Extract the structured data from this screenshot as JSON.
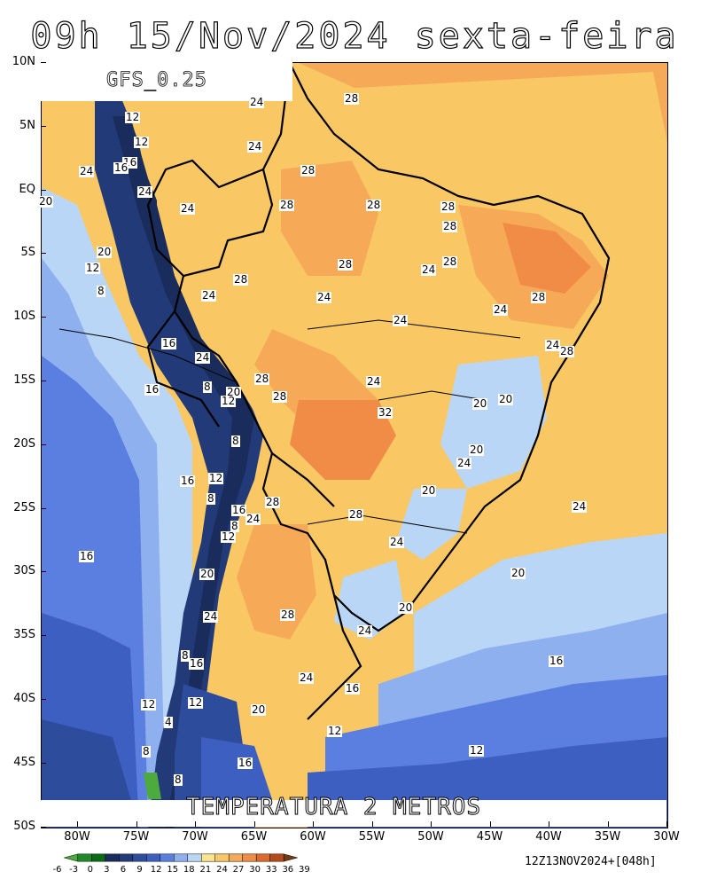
{
  "title": "09h 15/Nov/2024 sexta-feira",
  "model": "GFS_0.25",
  "variable": "TEMPERATURA 2 METROS",
  "run_info": "12Z13NOV2024+[048h]",
  "lat_ticks": [
    "10N",
    "5N",
    "EQ",
    "5S",
    "10S",
    "15S",
    "20S",
    "25S",
    "30S",
    "35S",
    "40S",
    "45S",
    "50S"
  ],
  "lon_ticks": [
    "80W",
    "75W",
    "70W",
    "65W",
    "60W",
    "55W",
    "50W",
    "45W",
    "40W",
    "35W",
    "30W"
  ],
  "colorbar": {
    "labels": [
      "-6",
      "-3",
      "0",
      "3",
      "6",
      "9",
      "12",
      "15",
      "18",
      "21",
      "24",
      "27",
      "30",
      "33",
      "36",
      "39"
    ],
    "colors": [
      "#4cab3c",
      "#1f8a2a",
      "#0b6a16",
      "#1a2c5c",
      "#223a78",
      "#2e4c9c",
      "#3d5fc2",
      "#5a7fe0",
      "#8fb0ef",
      "#bad6f6",
      "#fbe490",
      "#f9c865",
      "#f6aa58",
      "#f08c46",
      "#dd6a2a",
      "#b54a1a",
      "#7a3a10"
    ]
  },
  "contour_labels": [
    {
      "text": "28"
    },
    {
      "text": "24"
    },
    {
      "text": "12"
    },
    {
      "text": "24"
    },
    {
      "text": "12"
    },
    {
      "text": "16"
    },
    {
      "text": "16"
    },
    {
      "text": "28"
    },
    {
      "text": "24"
    },
    {
      "text": "24"
    },
    {
      "text": "28"
    },
    {
      "text": "28"
    },
    {
      "text": "28"
    },
    {
      "text": "28"
    },
    {
      "text": "20"
    },
    {
      "text": "24"
    },
    {
      "text": "28"
    },
    {
      "text": "20"
    },
    {
      "text": "12"
    },
    {
      "text": "8"
    },
    {
      "text": "24"
    },
    {
      "text": "28"
    },
    {
      "text": "24"
    },
    {
      "text": "28"
    },
    {
      "text": "24"
    },
    {
      "text": "24"
    },
    {
      "text": "16"
    },
    {
      "text": "24"
    },
    {
      "text": "28"
    },
    {
      "text": "24"
    },
    {
      "text": "24"
    },
    {
      "text": "8"
    },
    {
      "text": "20"
    },
    {
      "text": "28"
    },
    {
      "text": "28"
    },
    {
      "text": "16"
    },
    {
      "text": "12"
    },
    {
      "text": "24"
    },
    {
      "text": "28"
    },
    {
      "text": "32"
    },
    {
      "text": "20"
    },
    {
      "text": "20"
    },
    {
      "text": "8"
    },
    {
      "text": "20"
    },
    {
      "text": "24"
    },
    {
      "text": "16"
    },
    {
      "text": "12"
    },
    {
      "text": "20"
    },
    {
      "text": "8"
    },
    {
      "text": "28"
    },
    {
      "text": "16"
    },
    {
      "text": "24"
    },
    {
      "text": "8"
    },
    {
      "text": "28"
    },
    {
      "text": "12"
    },
    {
      "text": "24"
    },
    {
      "text": "24"
    },
    {
      "text": "16"
    },
    {
      "text": "20"
    },
    {
      "text": "20"
    },
    {
      "text": "20"
    },
    {
      "text": "24"
    },
    {
      "text": "28"
    },
    {
      "text": "24"
    },
    {
      "text": "8"
    },
    {
      "text": "16"
    },
    {
      "text": "24"
    },
    {
      "text": "16"
    },
    {
      "text": "16"
    },
    {
      "text": "12"
    },
    {
      "text": "12"
    },
    {
      "text": "20"
    },
    {
      "text": "4"
    },
    {
      "text": "12"
    },
    {
      "text": "12"
    },
    {
      "text": "8"
    },
    {
      "text": "16"
    },
    {
      "text": "8"
    }
  ]
}
